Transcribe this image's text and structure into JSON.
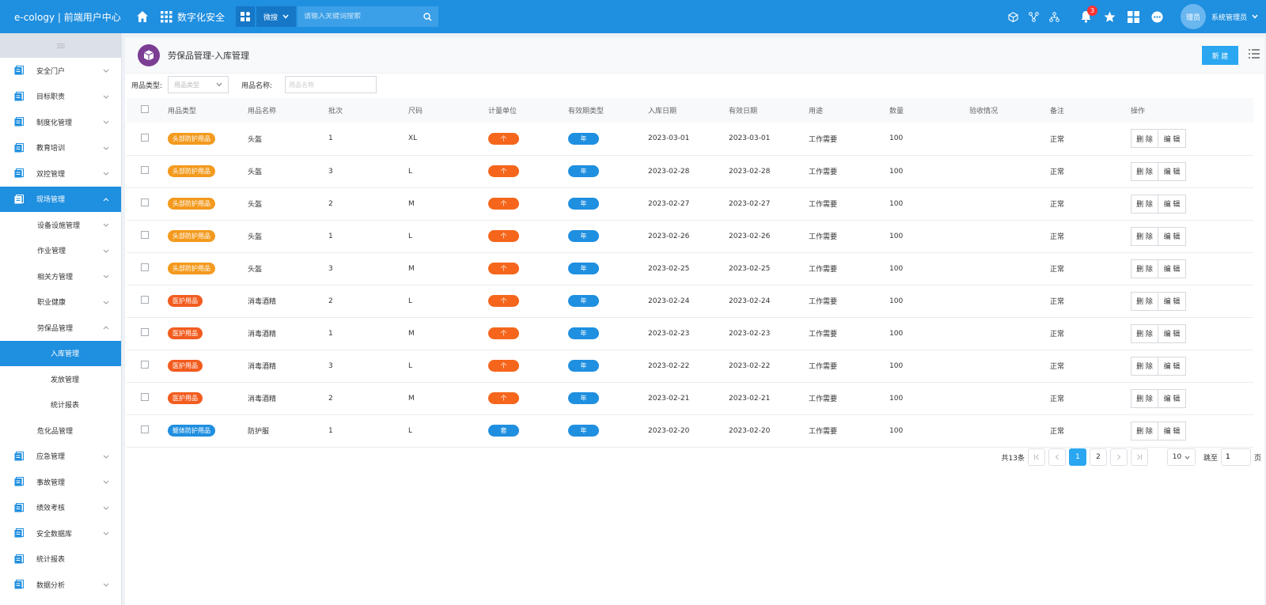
{
  "topbar": {
    "brand": "e-cology | 前端用户中心",
    "app_title": "数字化安全",
    "search_scope": "微搜",
    "search_placeholder": "请输入关键词搜索",
    "bell_count": "3",
    "avatar_text": "理员",
    "username": "系统管理员"
  },
  "sidebar": {
    "items": [
      {
        "label": "安全门户",
        "level": 0,
        "expandable": true
      },
      {
        "label": "目标职责",
        "level": 0,
        "expandable": true
      },
      {
        "label": "制度化管理",
        "level": 0,
        "expandable": true
      },
      {
        "label": "教育培训",
        "level": 0,
        "expandable": true
      },
      {
        "label": "双控管理",
        "level": 0,
        "expandable": true
      },
      {
        "label": "现场管理",
        "level": 0,
        "expandable": true,
        "open": true,
        "active": true
      },
      {
        "label": "设备设施管理",
        "level": 1,
        "expandable": true
      },
      {
        "label": "作业管理",
        "level": 1,
        "expandable": true
      },
      {
        "label": "相关方管理",
        "level": 1,
        "expandable": true
      },
      {
        "label": "职业健康",
        "level": 1,
        "expandable": true
      },
      {
        "label": "劳保品管理",
        "level": 1,
        "expandable": true,
        "open": true
      },
      {
        "label": "入库管理",
        "level": 2,
        "expandable": false,
        "active": true
      },
      {
        "label": "发放管理",
        "level": 2,
        "expandable": false
      },
      {
        "label": "统计报表",
        "level": 2,
        "expandable": false
      },
      {
        "label": "危化品管理",
        "level": 1,
        "expandable": false
      },
      {
        "label": "应急管理",
        "level": 0,
        "expandable": true
      },
      {
        "label": "事故管理",
        "level": 0,
        "expandable": true
      },
      {
        "label": "绩效考核",
        "level": 0,
        "expandable": true
      },
      {
        "label": "安全数据库",
        "level": 0,
        "expandable": true
      },
      {
        "label": "统计报表",
        "level": 0,
        "expandable": false
      },
      {
        "label": "数据分析",
        "level": 0,
        "expandable": true
      }
    ]
  },
  "page": {
    "title": "劳保品管理-入库管理",
    "new_label": "新 建"
  },
  "filter": {
    "type_label": "用品类型:",
    "type_placeholder": "用品类型",
    "name_label": "用品名称:",
    "name_placeholder": "用品名称"
  },
  "table": {
    "headers": [
      "用品类型",
      "用品名称",
      "批次",
      "尺码",
      "计量单位",
      "有效期类型",
      "入库日期",
      "有效日期",
      "用途",
      "数量",
      "验收情况",
      "备注",
      "操作"
    ],
    "delete_label": "删 除",
    "edit_label": "编 辑",
    "rows": [
      {
        "type": "头部防护用品",
        "name": "头盔",
        "batch": "1",
        "size": "XL",
        "unit": "个",
        "valid": "年",
        "in_date": "2023-03-01",
        "exp_date": "2023-03-01",
        "usage": "工作需要",
        "qty": "100",
        "accept": "",
        "note": "正常"
      },
      {
        "type": "头部防护用品",
        "name": "头盔",
        "batch": "3",
        "size": "L",
        "unit": "个",
        "valid": "年",
        "in_date": "2023-02-28",
        "exp_date": "2023-02-28",
        "usage": "工作需要",
        "qty": "100",
        "accept": "",
        "note": "正常"
      },
      {
        "type": "头部防护用品",
        "name": "头盔",
        "batch": "2",
        "size": "M",
        "unit": "个",
        "valid": "年",
        "in_date": "2023-02-27",
        "exp_date": "2023-02-27",
        "usage": "工作需要",
        "qty": "100",
        "accept": "",
        "note": "正常"
      },
      {
        "type": "头部防护用品",
        "name": "头盔",
        "batch": "1",
        "size": "L",
        "unit": "个",
        "valid": "年",
        "in_date": "2023-02-26",
        "exp_date": "2023-02-26",
        "usage": "工作需要",
        "qty": "100",
        "accept": "",
        "note": "正常"
      },
      {
        "type": "头部防护用品",
        "name": "头盔",
        "batch": "3",
        "size": "M",
        "unit": "个",
        "valid": "年",
        "in_date": "2023-02-25",
        "exp_date": "2023-02-25",
        "usage": "工作需要",
        "qty": "100",
        "accept": "",
        "note": "正常"
      },
      {
        "type": "医护用品",
        "name": "消毒酒精",
        "batch": "2",
        "size": "L",
        "unit": "个",
        "valid": "年",
        "in_date": "2023-02-24",
        "exp_date": "2023-02-24",
        "usage": "工作需要",
        "qty": "100",
        "accept": "",
        "note": "正常"
      },
      {
        "type": "医护用品",
        "name": "消毒酒精",
        "batch": "1",
        "size": "M",
        "unit": "个",
        "valid": "年",
        "in_date": "2023-02-23",
        "exp_date": "2023-02-23",
        "usage": "工作需要",
        "qty": "100",
        "accept": "",
        "note": "正常"
      },
      {
        "type": "医护用品",
        "name": "消毒酒精",
        "batch": "3",
        "size": "L",
        "unit": "个",
        "valid": "年",
        "in_date": "2023-02-22",
        "exp_date": "2023-02-22",
        "usage": "工作需要",
        "qty": "100",
        "accept": "",
        "note": "正常"
      },
      {
        "type": "医护用品",
        "name": "消毒酒精",
        "batch": "2",
        "size": "M",
        "unit": "个",
        "valid": "年",
        "in_date": "2023-02-21",
        "exp_date": "2023-02-21",
        "usage": "工作需要",
        "qty": "100",
        "accept": "",
        "note": "正常"
      },
      {
        "type": "躯体防护用品",
        "name": "防护服",
        "batch": "1",
        "size": "L",
        "unit": "套",
        "valid": "年",
        "in_date": "2023-02-20",
        "exp_date": "2023-02-20",
        "usage": "工作需要",
        "qty": "100",
        "accept": "",
        "note": "正常"
      }
    ]
  },
  "pager": {
    "total": "共13条",
    "pages": [
      "1",
      "2"
    ],
    "current": "1",
    "page_size": "10",
    "jump_label": "跳至",
    "jump_value": "1",
    "page_unit": "页"
  },
  "colors": {
    "topbar": "#1f8fe0",
    "head_tag": "#f39a1e",
    "medical_tag": "#f25c1f",
    "body_tag": "#1f8fe0",
    "unit_ge": "#f5661c",
    "unit_tao": "#1f8fe0",
    "valid_tag": "#1f8fe0",
    "primary": "#2aa7f0"
  }
}
